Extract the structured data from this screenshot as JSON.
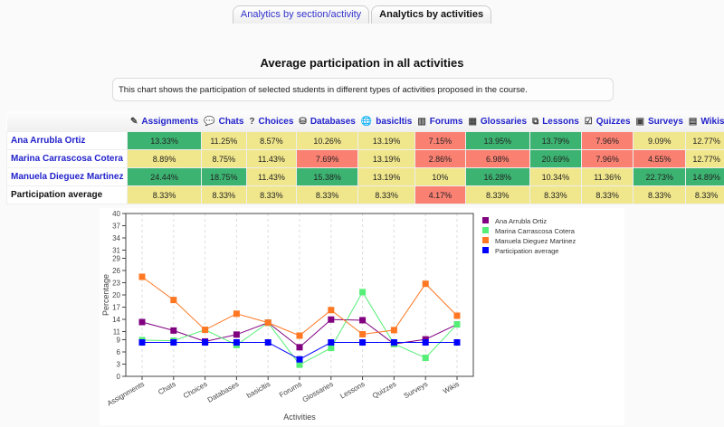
{
  "tabs": [
    {
      "label": "Analytics by section/activity",
      "active": false
    },
    {
      "label": "Analytics by activities",
      "active": true
    }
  ],
  "title": "Average participation in all activities",
  "description": "This chart shows the participation of selected students in different types of activities proposed in the course.",
  "table": {
    "columns": [
      {
        "label": "Assignments",
        "icon": "assignment-icon",
        "glyph": "✎"
      },
      {
        "label": "Chats",
        "icon": "chat-icon",
        "glyph": "💬"
      },
      {
        "label": "Choices",
        "icon": "question-icon",
        "glyph": "?"
      },
      {
        "label": "Databases",
        "icon": "database-icon",
        "glyph": "⛁"
      },
      {
        "label": "basicltis",
        "icon": "globe-icon",
        "glyph": "🌐"
      },
      {
        "label": "Forums",
        "icon": "forum-icon",
        "glyph": "▥"
      },
      {
        "label": "Glossaries",
        "icon": "glossary-icon",
        "glyph": "▦"
      },
      {
        "label": "Lessons",
        "icon": "lesson-icon",
        "glyph": "⧉"
      },
      {
        "label": "Quizzes",
        "icon": "quiz-icon",
        "glyph": "☑"
      },
      {
        "label": "Surveys",
        "icon": "survey-icon",
        "glyph": "▣"
      },
      {
        "label": "Wikis",
        "icon": "wiki-icon",
        "glyph": "▤"
      }
    ],
    "rows": [
      {
        "name": "Ana Arrubla Ortiz",
        "link": true,
        "cells": [
          [
            "13.33%",
            "green"
          ],
          [
            "11.25%",
            "yellow"
          ],
          [
            "8.57%",
            "yellow"
          ],
          [
            "10.26%",
            "yellow"
          ],
          [
            "13.19%",
            "yellow"
          ],
          [
            "7.15%",
            "red"
          ],
          [
            "13.95%",
            "green"
          ],
          [
            "13.79%",
            "green"
          ],
          [
            "7.96%",
            "red"
          ],
          [
            "9.09%",
            "yellow"
          ],
          [
            "12.77%",
            "yellow"
          ]
        ]
      },
      {
        "name": "Marina Carrascosa Cotera",
        "link": true,
        "cells": [
          [
            "8.89%",
            "yellow"
          ],
          [
            "8.75%",
            "yellow"
          ],
          [
            "11.43%",
            "yellow"
          ],
          [
            "7.69%",
            "red"
          ],
          [
            "13.19%",
            "yellow"
          ],
          [
            "2.86%",
            "red"
          ],
          [
            "6.98%",
            "red"
          ],
          [
            "20.69%",
            "green"
          ],
          [
            "7.96%",
            "red"
          ],
          [
            "4.55%",
            "red"
          ],
          [
            "12.77%",
            "yellow"
          ]
        ]
      },
      {
        "name": "Manuela Dieguez Martinez",
        "link": true,
        "cells": [
          [
            "24.44%",
            "green"
          ],
          [
            "18.75%",
            "green"
          ],
          [
            "11.43%",
            "yellow"
          ],
          [
            "15.38%",
            "green"
          ],
          [
            "13.19%",
            "yellow"
          ],
          [
            "10%",
            "yellow"
          ],
          [
            "16.28%",
            "green"
          ],
          [
            "10.34%",
            "yellow"
          ],
          [
            "11.36%",
            "yellow"
          ],
          [
            "22.73%",
            "green"
          ],
          [
            "14.89%",
            "green"
          ]
        ]
      },
      {
        "name": "Participation average",
        "link": false,
        "cells": [
          [
            "8.33%",
            "yellow"
          ],
          [
            "8.33%",
            "yellow"
          ],
          [
            "8.33%",
            "yellow"
          ],
          [
            "8.33%",
            "yellow"
          ],
          [
            "8.33%",
            "yellow"
          ],
          [
            "4.17%",
            "red"
          ],
          [
            "8.33%",
            "yellow"
          ],
          [
            "8.33%",
            "yellow"
          ],
          [
            "8.33%",
            "yellow"
          ],
          [
            "8.33%",
            "yellow"
          ],
          [
            "8.33%",
            "yellow"
          ]
        ]
      }
    ],
    "colors": {
      "green": "#3cb371",
      "yellow": "#f0e68c",
      "red": "#fa8072"
    }
  },
  "chart_data": {
    "type": "line",
    "xlabel": "Activities",
    "ylabel": "Percentage",
    "categories": [
      "Assignments",
      "Chats",
      "Choices",
      "Databases",
      "basicltis",
      "Forums",
      "Glossaries",
      "Lessons",
      "Quizzes",
      "Surveys",
      "Wikis"
    ],
    "ylim": [
      0,
      40
    ],
    "yticks": [
      0,
      3,
      6,
      9,
      11,
      14,
      17,
      20,
      23,
      26,
      29,
      31,
      34,
      37,
      40
    ],
    "grid": "vertical dashed",
    "legend": "right",
    "series": [
      {
        "name": "Ana Arrubla Ortiz",
        "color": "#800080",
        "values": [
          13.33,
          11.25,
          8.57,
          10.26,
          13.19,
          7.15,
          13.95,
          13.79,
          7.96,
          9.09,
          12.77
        ]
      },
      {
        "name": "Marina Carrascosa Cotera",
        "color": "#55ee77",
        "values": [
          8.89,
          8.75,
          11.43,
          7.69,
          13.19,
          2.86,
          6.98,
          20.69,
          7.96,
          4.55,
          12.77
        ]
      },
      {
        "name": "Manuela Dieguez Martinez",
        "color": "#ff7722",
        "values": [
          24.44,
          18.75,
          11.43,
          15.38,
          13.19,
          10,
          16.28,
          10.34,
          11.36,
          22.73,
          14.89
        ]
      },
      {
        "name": "Participation average",
        "color": "#0000ff",
        "values": [
          8.33,
          8.33,
          8.33,
          8.33,
          8.33,
          4.17,
          8.33,
          8.33,
          8.33,
          8.33,
          8.33
        ]
      }
    ]
  }
}
